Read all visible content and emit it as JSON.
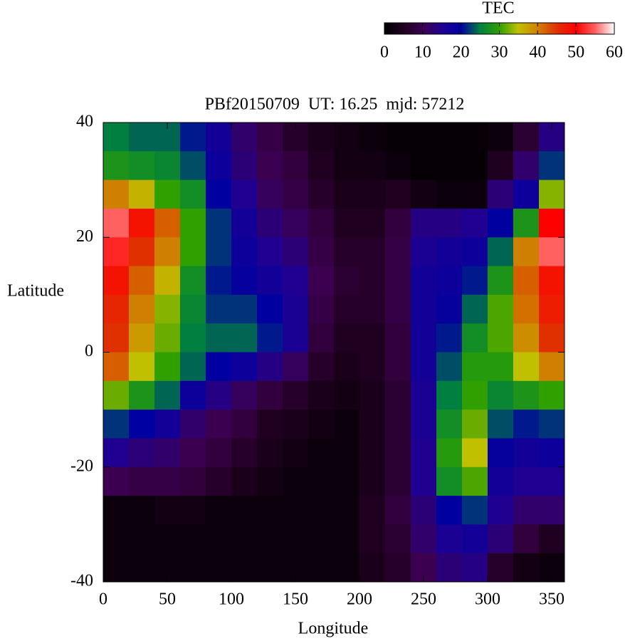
{
  "chart_data": {
    "type": "heatmap",
    "title": "PBf20150709  UT: 16.25  mjd: 57212",
    "x_label": "Longitude",
    "y_label": "Latitude",
    "x": [
      10,
      30,
      50,
      70,
      90,
      110,
      130,
      150,
      170,
      190,
      210,
      230,
      250,
      270,
      290,
      310,
      330,
      350
    ],
    "y": [
      37.5,
      32.5,
      27.5,
      22.5,
      17.5,
      12.5,
      7.5,
      2.5,
      -2.5,
      -7.5,
      -12.5,
      -17.5,
      -22.5,
      -27.5,
      -32.5,
      -37.5
    ],
    "values": [
      [
        25,
        24,
        24,
        21,
        17,
        12,
        9,
        6,
        4,
        3,
        2,
        1,
        1,
        1,
        1,
        2,
        7,
        14
      ],
      [
        28,
        27,
        26,
        23,
        18,
        13,
        10,
        8,
        5,
        3,
        3,
        2,
        1,
        1,
        1,
        5,
        12,
        22
      ],
      [
        40,
        36,
        30,
        27,
        20,
        15,
        11,
        9,
        6,
        4,
        4,
        5,
        3,
        2,
        2,
        13,
        18,
        33
      ],
      [
        55,
        48,
        42,
        30,
        22,
        17,
        13,
        11,
        8,
        5,
        5,
        8,
        14,
        14,
        15,
        20,
        28,
        50
      ],
      [
        52,
        45,
        40,
        30,
        22,
        18,
        15,
        13,
        9,
        6,
        6,
        9,
        16,
        17,
        18,
        24,
        40,
        55
      ],
      [
        48,
        42,
        36,
        27,
        21,
        19,
        17,
        15,
        10,
        7,
        6,
        9,
        17,
        18,
        21,
        28,
        42,
        48
      ],
      [
        46,
        40,
        33,
        26,
        22,
        22,
        20,
        16,
        9,
        6,
        6,
        9,
        17,
        19,
        24,
        31,
        41,
        47
      ],
      [
        45,
        38,
        32,
        25,
        24,
        24,
        21,
        16,
        8,
        5,
        5,
        8,
        17,
        21,
        27,
        31,
        39,
        45
      ],
      [
        42,
        35,
        30,
        24,
        20,
        18,
        14,
        11,
        6,
        4,
        5,
        8,
        17,
        23,
        29,
        29,
        35,
        40
      ],
      [
        32,
        28,
        24,
        18,
        14,
        11,
        8,
        6,
        4,
        3,
        4,
        7,
        16,
        25,
        30,
        26,
        28,
        30
      ],
      [
        22,
        20,
        17,
        12,
        10,
        8,
        5,
        4,
        3,
        2,
        4,
        7,
        16,
        27,
        32,
        23,
        21,
        22
      ],
      [
        15,
        13,
        12,
        10,
        8,
        6,
        4,
        3,
        2,
        2,
        4,
        7,
        15,
        29,
        35,
        19,
        17,
        18
      ],
      [
        10,
        9,
        9,
        8,
        6,
        4,
        3,
        2,
        2,
        2,
        4,
        7,
        15,
        27,
        31,
        17,
        15,
        15
      ],
      [
        2,
        2,
        3,
        3,
        2,
        2,
        2,
        2,
        2,
        2,
        5,
        8,
        13,
        20,
        22,
        15,
        12,
        12
      ],
      [
        2,
        2,
        2,
        2,
        2,
        2,
        2,
        2,
        2,
        2,
        5,
        7,
        12,
        16,
        17,
        13,
        8,
        5
      ],
      [
        2,
        2,
        2,
        2,
        2,
        2,
        2,
        2,
        2,
        2,
        4,
        6,
        10,
        13,
        14,
        6,
        3,
        2
      ]
    ],
    "xlim": [
      0,
      360
    ],
    "xticks": [
      0,
      50,
      100,
      150,
      200,
      250,
      300,
      350
    ],
    "ylim": [
      -40,
      40
    ],
    "yticks": [
      -40,
      -20,
      0,
      20,
      40
    ],
    "colorbar": {
      "label": "TEC",
      "lim": [
        0,
        60
      ],
      "ticks": [
        0,
        10,
        20,
        30,
        40,
        50,
        60
      ],
      "colors": [
        "#000000",
        "#200020",
        "#3c0050",
        "#200090",
        "#0000a0",
        "#008040",
        "#30a000",
        "#c0c000",
        "#d08000",
        "#e03000",
        "#ff0000",
        "#ff6060",
        "#ffffff"
      ]
    }
  }
}
